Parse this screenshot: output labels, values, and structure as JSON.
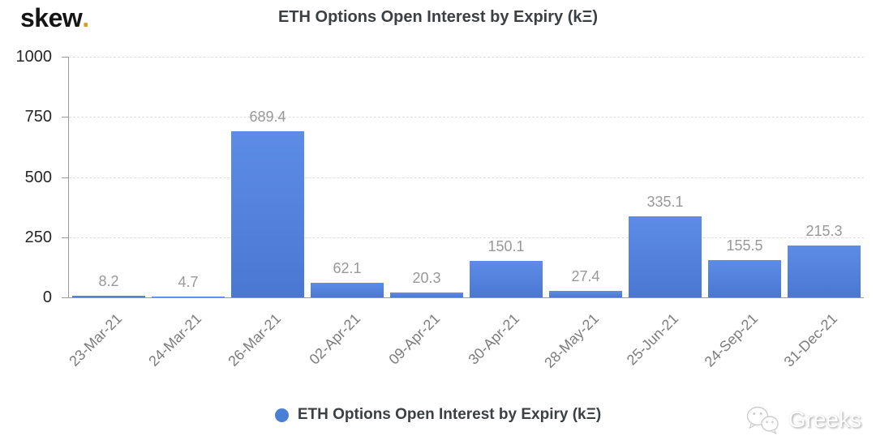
{
  "logo": {
    "text": "skew",
    "dot": ".",
    "dot_color": "#d5a021"
  },
  "header": {
    "title": "ETH Options Open Interest by Expiry (kΞ)"
  },
  "chart_data": {
    "type": "bar",
    "title": "ETH Options Open Interest by Expiry (kΞ)",
    "categories": [
      "23-Mar-21",
      "24-Mar-21",
      "26-Mar-21",
      "02-Apr-21",
      "09-Apr-21",
      "30-Apr-21",
      "28-May-21",
      "25-Jun-21",
      "24-Sep-21",
      "31-Dec-21"
    ],
    "values": [
      8.2,
      4.7,
      689.4,
      62.1,
      20.3,
      150.1,
      27.4,
      335.1,
      155.5,
      215.3
    ],
    "value_labels": [
      "8.2",
      "4.7",
      "689.4",
      "62.1",
      "20.3",
      "150.1",
      "27.4",
      "335.1",
      "155.5",
      "215.3"
    ],
    "xlabel": "",
    "ylabel": "",
    "ylim": [
      0,
      1000
    ],
    "yticks": [
      0,
      250,
      500,
      750,
      1000
    ],
    "grid": "horizontal-dashed",
    "bar_color_top": "#5d8ce6",
    "bar_color_bottom": "#4a77d2",
    "value_label_color": "#98989a",
    "legend_position": "bottom-center"
  },
  "legend": {
    "label": "ETH Options Open Interest by Expiry (kΞ)",
    "marker_color": "#4a7fd6"
  },
  "watermark": {
    "text": "Greeks",
    "icon": "wechat-icon"
  }
}
